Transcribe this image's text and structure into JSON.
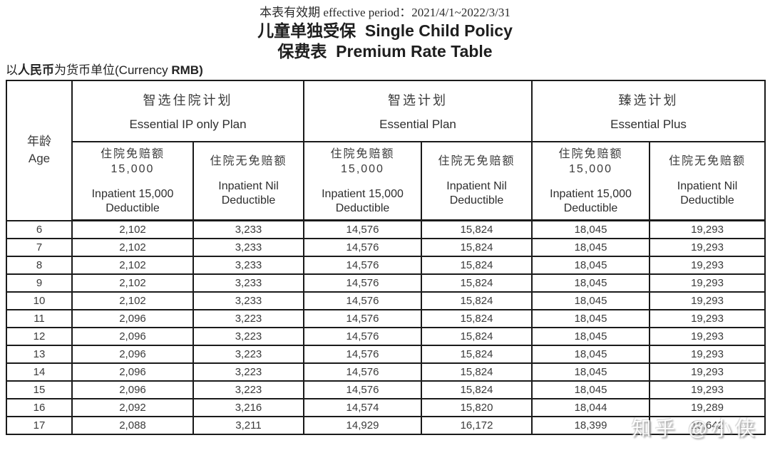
{
  "header": {
    "effective_period": "本表有效期 effective period：2021/4/1~2022/3/31",
    "title_line1": "儿童单独受保  Single Child Policy",
    "title_line2": "保费表  Premium Rate Table"
  },
  "currency": {
    "prefix": "以",
    "bold_zh": "人民币",
    "middle": "为货币单位(Currency ",
    "bold_en": "RMB)"
  },
  "table": {
    "age_header": "年龄\nAge",
    "plans": [
      {
        "zh": "智选住院计划",
        "en": "Essential IP only Plan"
      },
      {
        "zh": "智选计划",
        "en": "Essential Plan"
      },
      {
        "zh": "臻选计划",
        "en": "Essential Plus"
      }
    ],
    "sub_headers": [
      {
        "zh": "住院免赔额\n15,000",
        "en": "Inpatient 15,000\nDeductible"
      },
      {
        "zh": "住院无免赔额",
        "en": "Inpatient Nil\nDeductible"
      },
      {
        "zh": "住院免赔额\n15,000",
        "en": "Inpatient 15,000\nDeductible"
      },
      {
        "zh": "住院无免赔额",
        "en": "Inpatient Nil\nDeductible"
      },
      {
        "zh": "住院免赔额\n15,000",
        "en": "Inpatient 15,000\nDeductible"
      },
      {
        "zh": "住院无免赔额",
        "en": "Inpatient Nil\nDeductible"
      }
    ],
    "rows": [
      [
        "6",
        "2,102",
        "3,233",
        "14,576",
        "15,824",
        "18,045",
        "19,293"
      ],
      [
        "7",
        "2,102",
        "3,233",
        "14,576",
        "15,824",
        "18,045",
        "19,293"
      ],
      [
        "8",
        "2,102",
        "3,233",
        "14,576",
        "15,824",
        "18,045",
        "19,293"
      ],
      [
        "9",
        "2,102",
        "3,233",
        "14,576",
        "15,824",
        "18,045",
        "19,293"
      ],
      [
        "10",
        "2,102",
        "3,233",
        "14,576",
        "15,824",
        "18,045",
        "19,293"
      ],
      [
        "11",
        "2,096",
        "3,223",
        "14,576",
        "15,824",
        "18,045",
        "19,293"
      ],
      [
        "12",
        "2,096",
        "3,223",
        "14,576",
        "15,824",
        "18,045",
        "19,293"
      ],
      [
        "13",
        "2,096",
        "3,223",
        "14,576",
        "15,824",
        "18,045",
        "19,293"
      ],
      [
        "14",
        "2,096",
        "3,223",
        "14,576",
        "15,824",
        "18,045",
        "19,293"
      ],
      [
        "15",
        "2,096",
        "3,223",
        "14,576",
        "15,824",
        "18,045",
        "19,293"
      ],
      [
        "16",
        "2,092",
        "3,216",
        "14,574",
        "15,820",
        "18,044",
        "19,289"
      ],
      [
        "17",
        "2,088",
        "3,211",
        "14,929",
        "16,172",
        "18,399",
        "19,642"
      ]
    ]
  },
  "watermark": {
    "text": "知乎 @小侠"
  },
  "colors": {
    "border": "#1a1a1a",
    "text": "#333333",
    "background": "#ffffff",
    "watermark": "#ffffff"
  }
}
